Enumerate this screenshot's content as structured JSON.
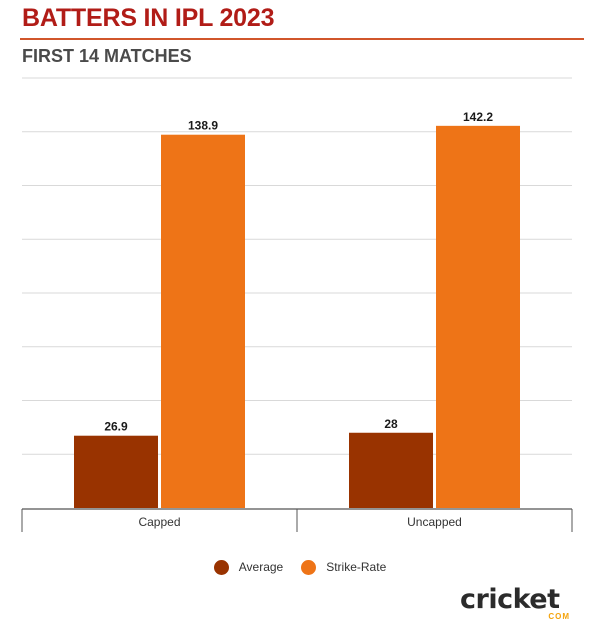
{
  "header": {
    "title": "BATTERS IN IPL 2023",
    "subtitle": "FIRST 14 MATCHES"
  },
  "chart_data": {
    "type": "bar",
    "categories": [
      "Capped",
      "Uncapped"
    ],
    "series": [
      {
        "name": "Average",
        "values": [
          26.9,
          28
        ],
        "labels": [
          "26.9",
          "28"
        ],
        "color": "#993300"
      },
      {
        "name": "Strike-Rate",
        "values": [
          138.9,
          142.2
        ],
        "labels": [
          "138.9",
          "142.2"
        ],
        "color": "#ee7417"
      }
    ],
    "ylim": [
      0,
      160
    ],
    "grid": true,
    "legend_position": "bottom"
  },
  "logo": {
    "word": "cricket",
    "suffix": "COM"
  }
}
